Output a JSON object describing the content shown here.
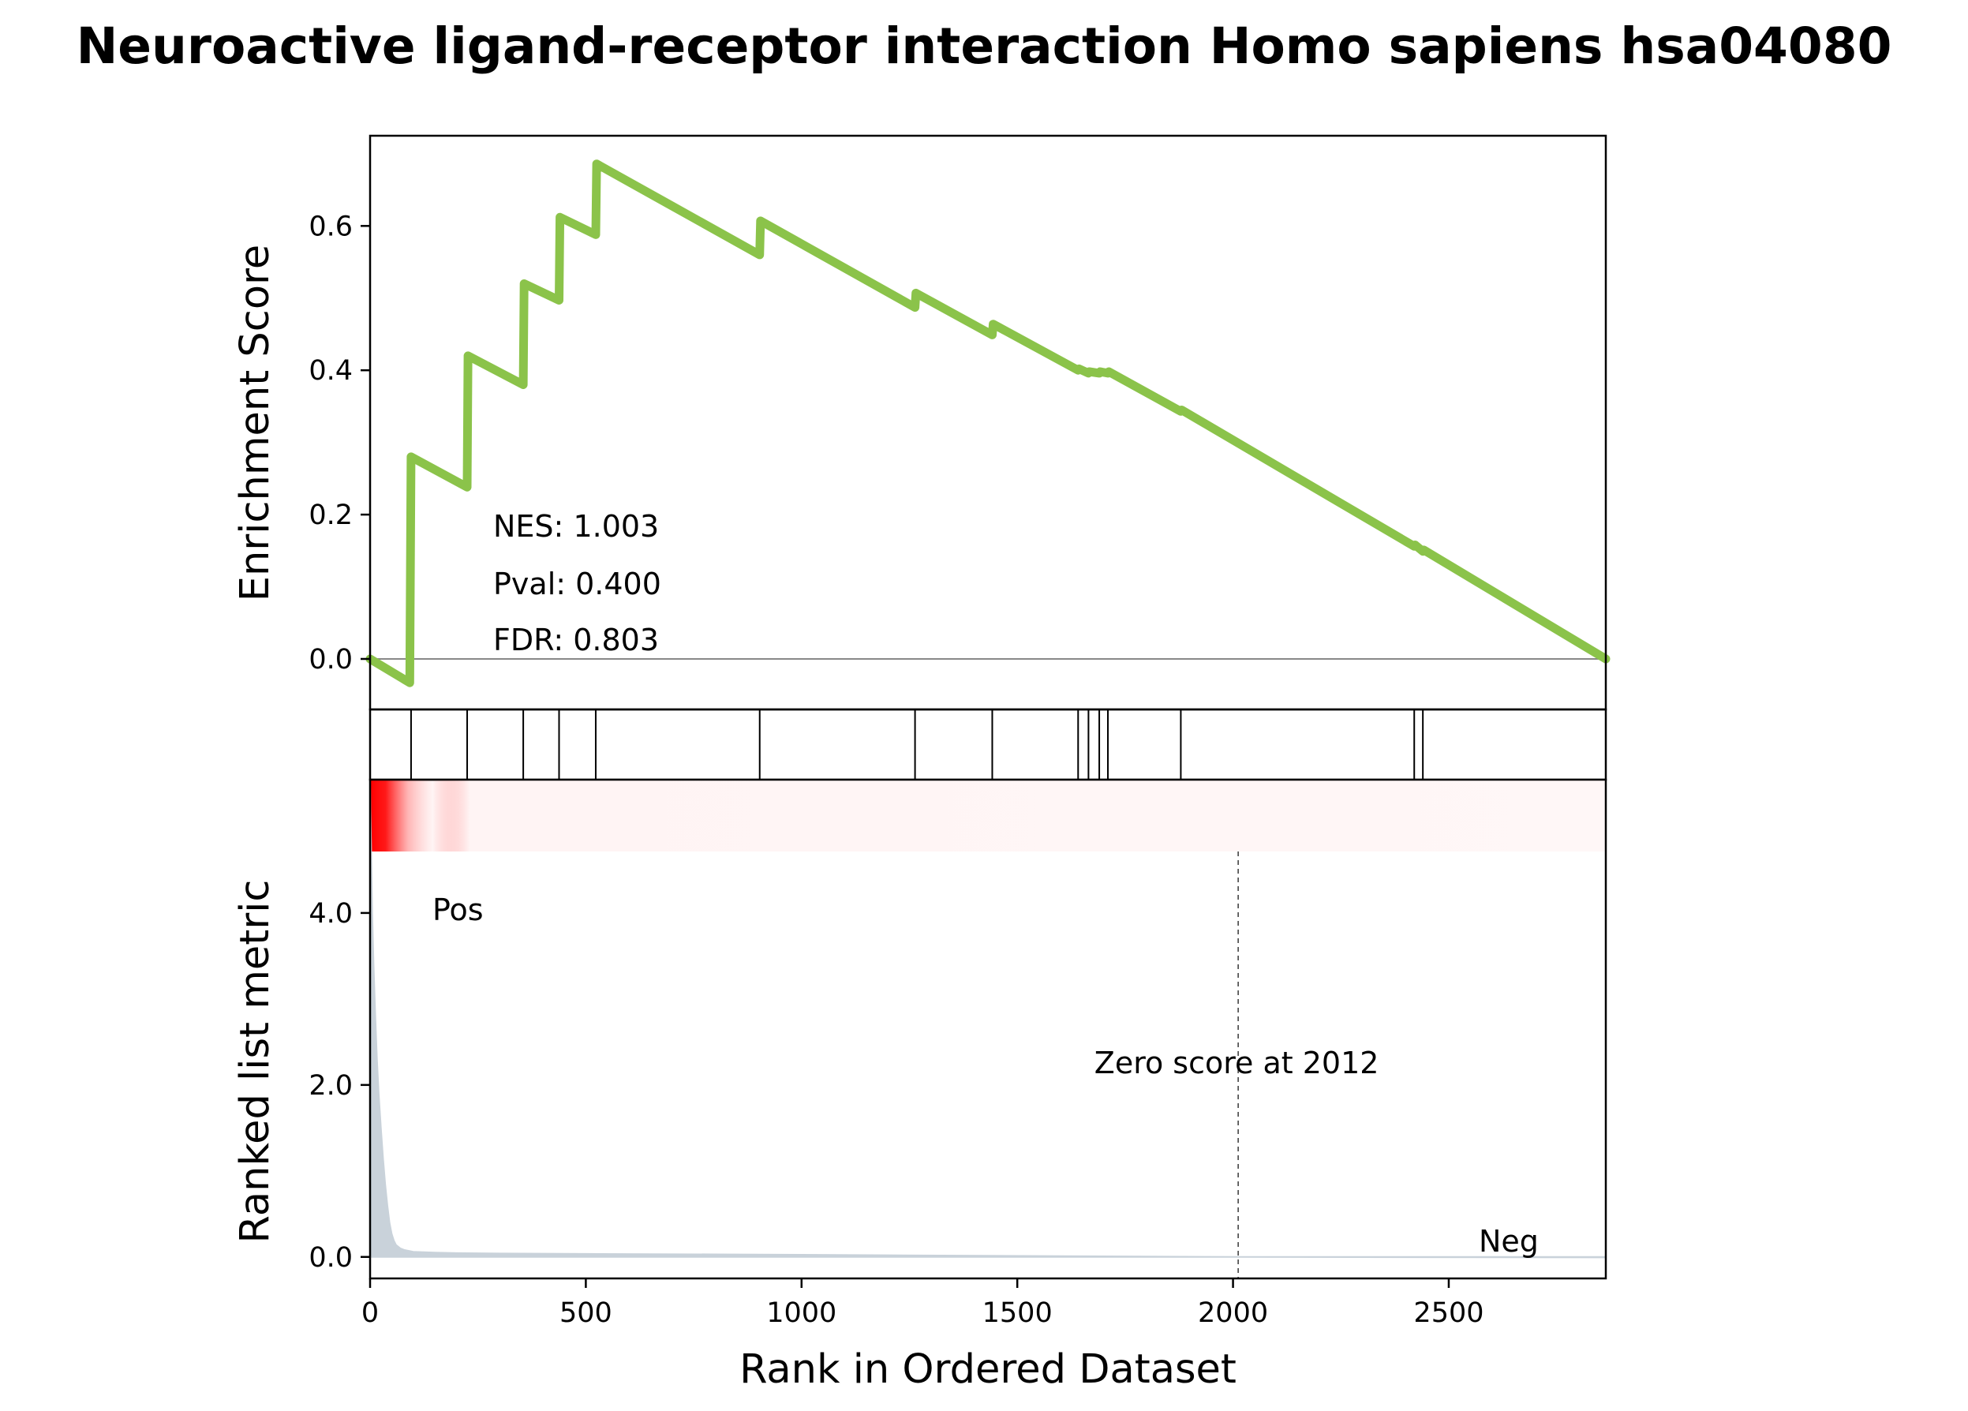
{
  "chart_data": {
    "type": "line",
    "title": "Neuroactive ligand-receptor interaction Homo sapiens hsa04080",
    "xlabel": "Rank in Ordered Dataset",
    "xlim": [
      0,
      2864
    ],
    "x_ticks": [
      0,
      500,
      1000,
      1500,
      2000,
      2500
    ],
    "enrichment_panel": {
      "ylabel": "Enrichment Score",
      "ylim": [
        -0.07,
        0.725
      ],
      "y_ticks": [
        "0.0",
        "0.2",
        "0.4",
        "0.6"
      ],
      "y_tick_values": [
        0.0,
        0.2,
        0.4,
        0.6
      ],
      "line_color": "#8bc34a",
      "zero_line": true,
      "series": [
        {
          "x": [
            0,
            92,
            95,
            225,
            227,
            355,
            357,
            438,
            440,
            523,
            525,
            903,
            905,
            1263,
            1265,
            1442,
            1444,
            1641,
            1643,
            1665,
            1667,
            1690,
            1692,
            1710,
            1712,
            1879,
            1881,
            2420,
            2422,
            2440,
            2442,
            2864
          ],
          "y": [
            0.0,
            -0.033,
            0.28,
            0.238,
            0.42,
            0.38,
            0.52,
            0.497,
            0.612,
            0.588,
            0.686,
            0.56,
            0.607,
            0.487,
            0.507,
            0.449,
            0.464,
            0.4,
            0.402,
            0.396,
            0.398,
            0.396,
            0.398,
            0.396,
            0.398,
            0.343,
            0.345,
            0.156,
            0.158,
            0.149,
            0.151,
            0.0
          ]
        }
      ],
      "annotations": [
        "NES: 1.003",
        "Pval: 0.400",
        "FDR: 0.803"
      ]
    },
    "hit_positions": [
      95,
      225,
      355,
      438,
      523,
      903,
      1263,
      1442,
      1641,
      1665,
      1690,
      1710,
      1879,
      2420,
      2440
    ],
    "ranked_metric_panel": {
      "ylabel": "Ranked list metric",
      "ylim": [
        -0.25,
        5.55
      ],
      "y_ticks": [
        "0.0",
        "2.0",
        "4.0"
      ],
      "y_tick_values": [
        0.0,
        2.0,
        4.0
      ],
      "fill_color": "#c9d2da",
      "series": [
        {
          "x": [
            0,
            1,
            3,
            5,
            8,
            12,
            16,
            20,
            25,
            30,
            35,
            40,
            45,
            50,
            55,
            60,
            70,
            80,
            100,
            150,
            200,
            300,
            500,
            800,
            1200,
            1600,
            2012,
            2400,
            2864
          ],
          "y": [
            5.5,
            5.2,
            4.6,
            4.0,
            3.4,
            2.8,
            2.3,
            1.9,
            1.5,
            1.15,
            0.85,
            0.6,
            0.4,
            0.27,
            0.19,
            0.14,
            0.1,
            0.08,
            0.06,
            0.05,
            0.045,
            0.04,
            0.035,
            0.03,
            0.02,
            0.01,
            0.0,
            -0.003,
            -0.006
          ]
        }
      ],
      "zero_cross": 2012,
      "zero_label": "Zero score at 2012",
      "pos_label": "Pos",
      "neg_label": "Neg",
      "pos_color": "#ff0000",
      "neg_color": "#0000ff"
    }
  }
}
